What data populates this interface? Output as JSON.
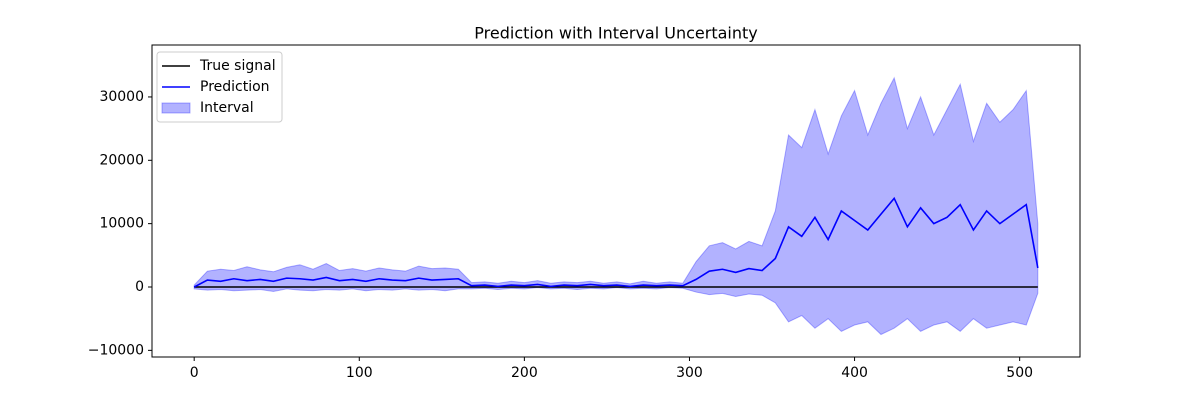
{
  "chart_data": {
    "type": "line",
    "title": "Prediction with Interval Uncertainty",
    "x": [
      0,
      8,
      16,
      24,
      32,
      40,
      48,
      56,
      64,
      72,
      80,
      88,
      96,
      104,
      112,
      120,
      128,
      136,
      144,
      152,
      160,
      168,
      176,
      184,
      192,
      200,
      208,
      216,
      224,
      232,
      240,
      248,
      256,
      264,
      272,
      280,
      288,
      296,
      304,
      312,
      320,
      328,
      336,
      344,
      352,
      360,
      368,
      376,
      384,
      392,
      400,
      408,
      416,
      424,
      432,
      440,
      448,
      456,
      464,
      472,
      480,
      488,
      496,
      504,
      511
    ],
    "series": [
      {
        "name": "True signal",
        "type": "line",
        "color": "#000000",
        "values": [
          0,
          0,
          0,
          0,
          0,
          0,
          0,
          0,
          0,
          0,
          0,
          0,
          0,
          0,
          0,
          0,
          0,
          0,
          0,
          0,
          0,
          0,
          0,
          0,
          0,
          0,
          0,
          0,
          0,
          0,
          0,
          0,
          0,
          0,
          0,
          0,
          0,
          0,
          0,
          0,
          0,
          0,
          0,
          0,
          0,
          0,
          0,
          0,
          0,
          0,
          0,
          0,
          0,
          0,
          0,
          0,
          0,
          0,
          0,
          0,
          0,
          0,
          0,
          0,
          0
        ]
      },
      {
        "name": "Prediction",
        "type": "line",
        "color": "#0000ff",
        "values": [
          0,
          1100,
          900,
          1300,
          1000,
          1200,
          900,
          1400,
          1300,
          1100,
          1500,
          1000,
          1200,
          900,
          1300,
          1100,
          1000,
          1400,
          1100,
          1200,
          1300,
          200,
          300,
          100,
          300,
          200,
          400,
          100,
          300,
          200,
          400,
          200,
          300,
          100,
          300,
          200,
          300,
          200,
          1200,
          2500,
          2800,
          2300,
          2900,
          2600,
          4500,
          9500,
          8000,
          11000,
          7500,
          12000,
          10500,
          9000,
          11500,
          14000,
          9500,
          12500,
          10000,
          11000,
          13000,
          9000,
          12000,
          10000,
          11500,
          13000,
          3000
        ]
      },
      {
        "name": "Interval",
        "type": "band",
        "color": "#0000ff",
        "alpha": 0.3,
        "upper": [
          300,
          2500,
          2800,
          2600,
          3200,
          2700,
          2400,
          3100,
          3500,
          2800,
          3700,
          2600,
          2900,
          2500,
          3000,
          2700,
          2500,
          3300,
          2900,
          3000,
          2800,
          700,
          800,
          600,
          900,
          700,
          1000,
          600,
          800,
          700,
          900,
          600,
          800,
          500,
          900,
          600,
          800,
          600,
          4000,
          6500,
          7000,
          6000,
          7200,
          6500,
          12000,
          24000,
          22000,
          28000,
          21000,
          27000,
          31000,
          24000,
          29000,
          33000,
          25000,
          30000,
          24000,
          28000,
          32000,
          23000,
          29000,
          26000,
          28000,
          31000,
          10000
        ],
        "lower": [
          -300,
          -500,
          -400,
          -600,
          -500,
          -400,
          -700,
          -300,
          -500,
          -600,
          -400,
          -500,
          -300,
          -600,
          -400,
          -500,
          -300,
          -500,
          -400,
          -600,
          -300,
          -300,
          -200,
          -400,
          -200,
          -300,
          -100,
          -300,
          -200,
          -400,
          -200,
          -300,
          -100,
          -300,
          -200,
          -300,
          -100,
          -200,
          -800,
          -1200,
          -1000,
          -1500,
          -1100,
          -1300,
          -2500,
          -5500,
          -4500,
          -6500,
          -5000,
          -7000,
          -6000,
          -5500,
          -7500,
          -6500,
          -5000,
          -7000,
          -6000,
          -5500,
          -7000,
          -5000,
          -6500,
          -6000,
          -5500,
          -6000,
          -1000
        ]
      }
    ],
    "xlim": [
      -25.55,
      536.55
    ],
    "ylim": [
      -11050,
      38200
    ],
    "xticks": [
      0,
      100,
      200,
      300,
      400,
      500
    ],
    "yticks": [
      {
        "value": -10000,
        "label": "−10000"
      },
      0,
      10000,
      20000,
      30000
    ],
    "legend": "upper left",
    "grid": false
  }
}
